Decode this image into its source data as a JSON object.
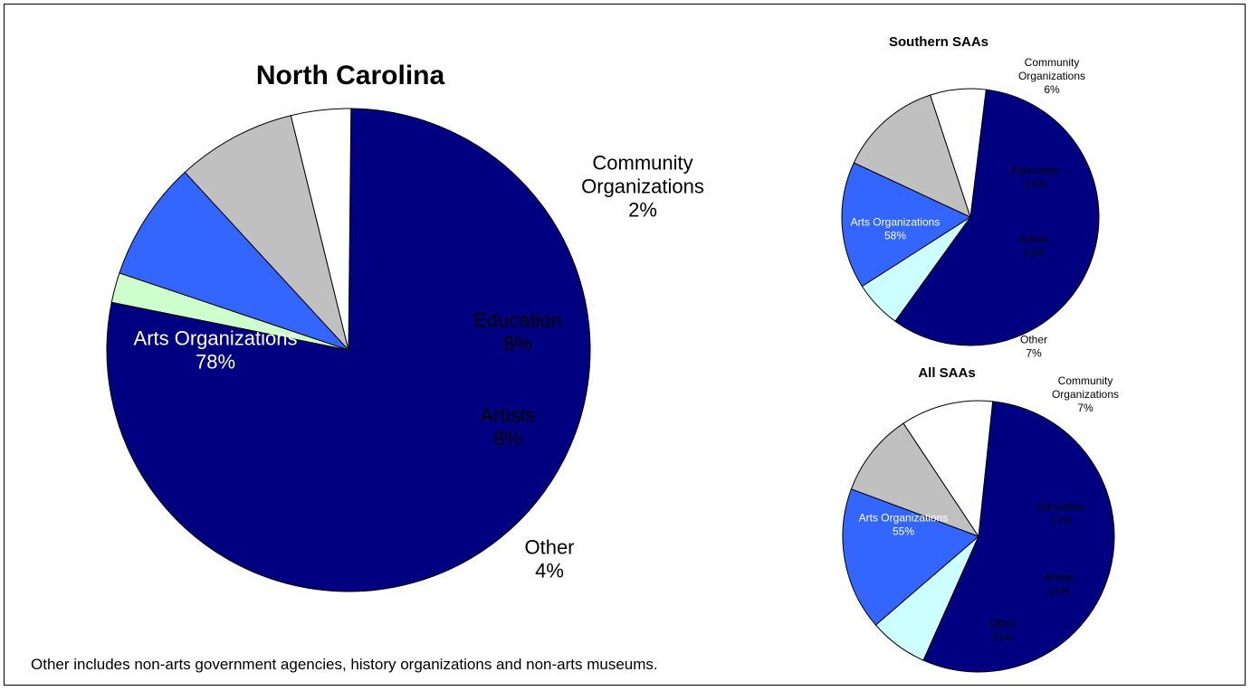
{
  "footnote": "Other includes non-arts government agencies, history organizations and non-arts museums.",
  "colors": {
    "arts_organizations": "#000080",
    "community_organizations": "#ccffcc",
    "community_organizations_regional": "#ccffff",
    "education": "#3366ff",
    "artists": "#c0c0c0",
    "other": "#ffffff",
    "outline": "#000000"
  },
  "chart_data": [
    {
      "type": "pie",
      "title": "North Carolina",
      "slices": [
        {
          "label_lines": [
            "Arts Organizations",
            "78%"
          ],
          "value": 78,
          "color": "#000080",
          "text_color": "#ffffff"
        },
        {
          "label_lines": [
            "Community",
            "Organizations",
            "2%"
          ],
          "value": 2,
          "color": "#ccffcc",
          "text_color": "#000000"
        },
        {
          "label_lines": [
            "Education",
            "8%"
          ],
          "value": 8,
          "color": "#3366ff",
          "text_color": "#000000"
        },
        {
          "label_lines": [
            "Artists",
            "8%"
          ],
          "value": 8,
          "color": "#c0c0c0",
          "text_color": "#000000"
        },
        {
          "label_lines": [
            "Other",
            "4%"
          ],
          "value": 4,
          "color": "#ffffff",
          "text_color": "#000000"
        }
      ]
    },
    {
      "type": "pie",
      "title": "Southern SAAs",
      "slices": [
        {
          "label_lines": [
            "Arts Organizations",
            "58%"
          ],
          "value": 58,
          "color": "#000080",
          "text_color": "#ffffff"
        },
        {
          "label_lines": [
            "Community",
            "Organizations",
            "6%"
          ],
          "value": 6,
          "color": "#ccffff",
          "text_color": "#000000"
        },
        {
          "label_lines": [
            "Education",
            "16%"
          ],
          "value": 16,
          "color": "#3366ff",
          "text_color": "#000000"
        },
        {
          "label_lines": [
            "Artists",
            "13%"
          ],
          "value": 13,
          "color": "#c0c0c0",
          "text_color": "#000000"
        },
        {
          "label_lines": [
            "Other",
            "7%"
          ],
          "value": 7,
          "color": "#ffffff",
          "text_color": "#000000"
        }
      ]
    },
    {
      "type": "pie",
      "title": "All SAAs",
      "slices": [
        {
          "label_lines": [
            "Arts Organizations",
            "55%"
          ],
          "value": 55,
          "color": "#000080",
          "text_color": "#ffffff"
        },
        {
          "label_lines": [
            "Community",
            "Organizations",
            "7%"
          ],
          "value": 7,
          "color": "#ccffff",
          "text_color": "#000000"
        },
        {
          "label_lines": [
            "Education",
            "17%"
          ],
          "value": 17,
          "color": "#3366ff",
          "text_color": "#000000"
        },
        {
          "label_lines": [
            "Artists",
            "10%"
          ],
          "value": 10,
          "color": "#c0c0c0",
          "text_color": "#000000"
        },
        {
          "label_lines": [
            "Other",
            "11%"
          ],
          "value": 11,
          "color": "#ffffff",
          "text_color": "#000000"
        }
      ]
    }
  ]
}
